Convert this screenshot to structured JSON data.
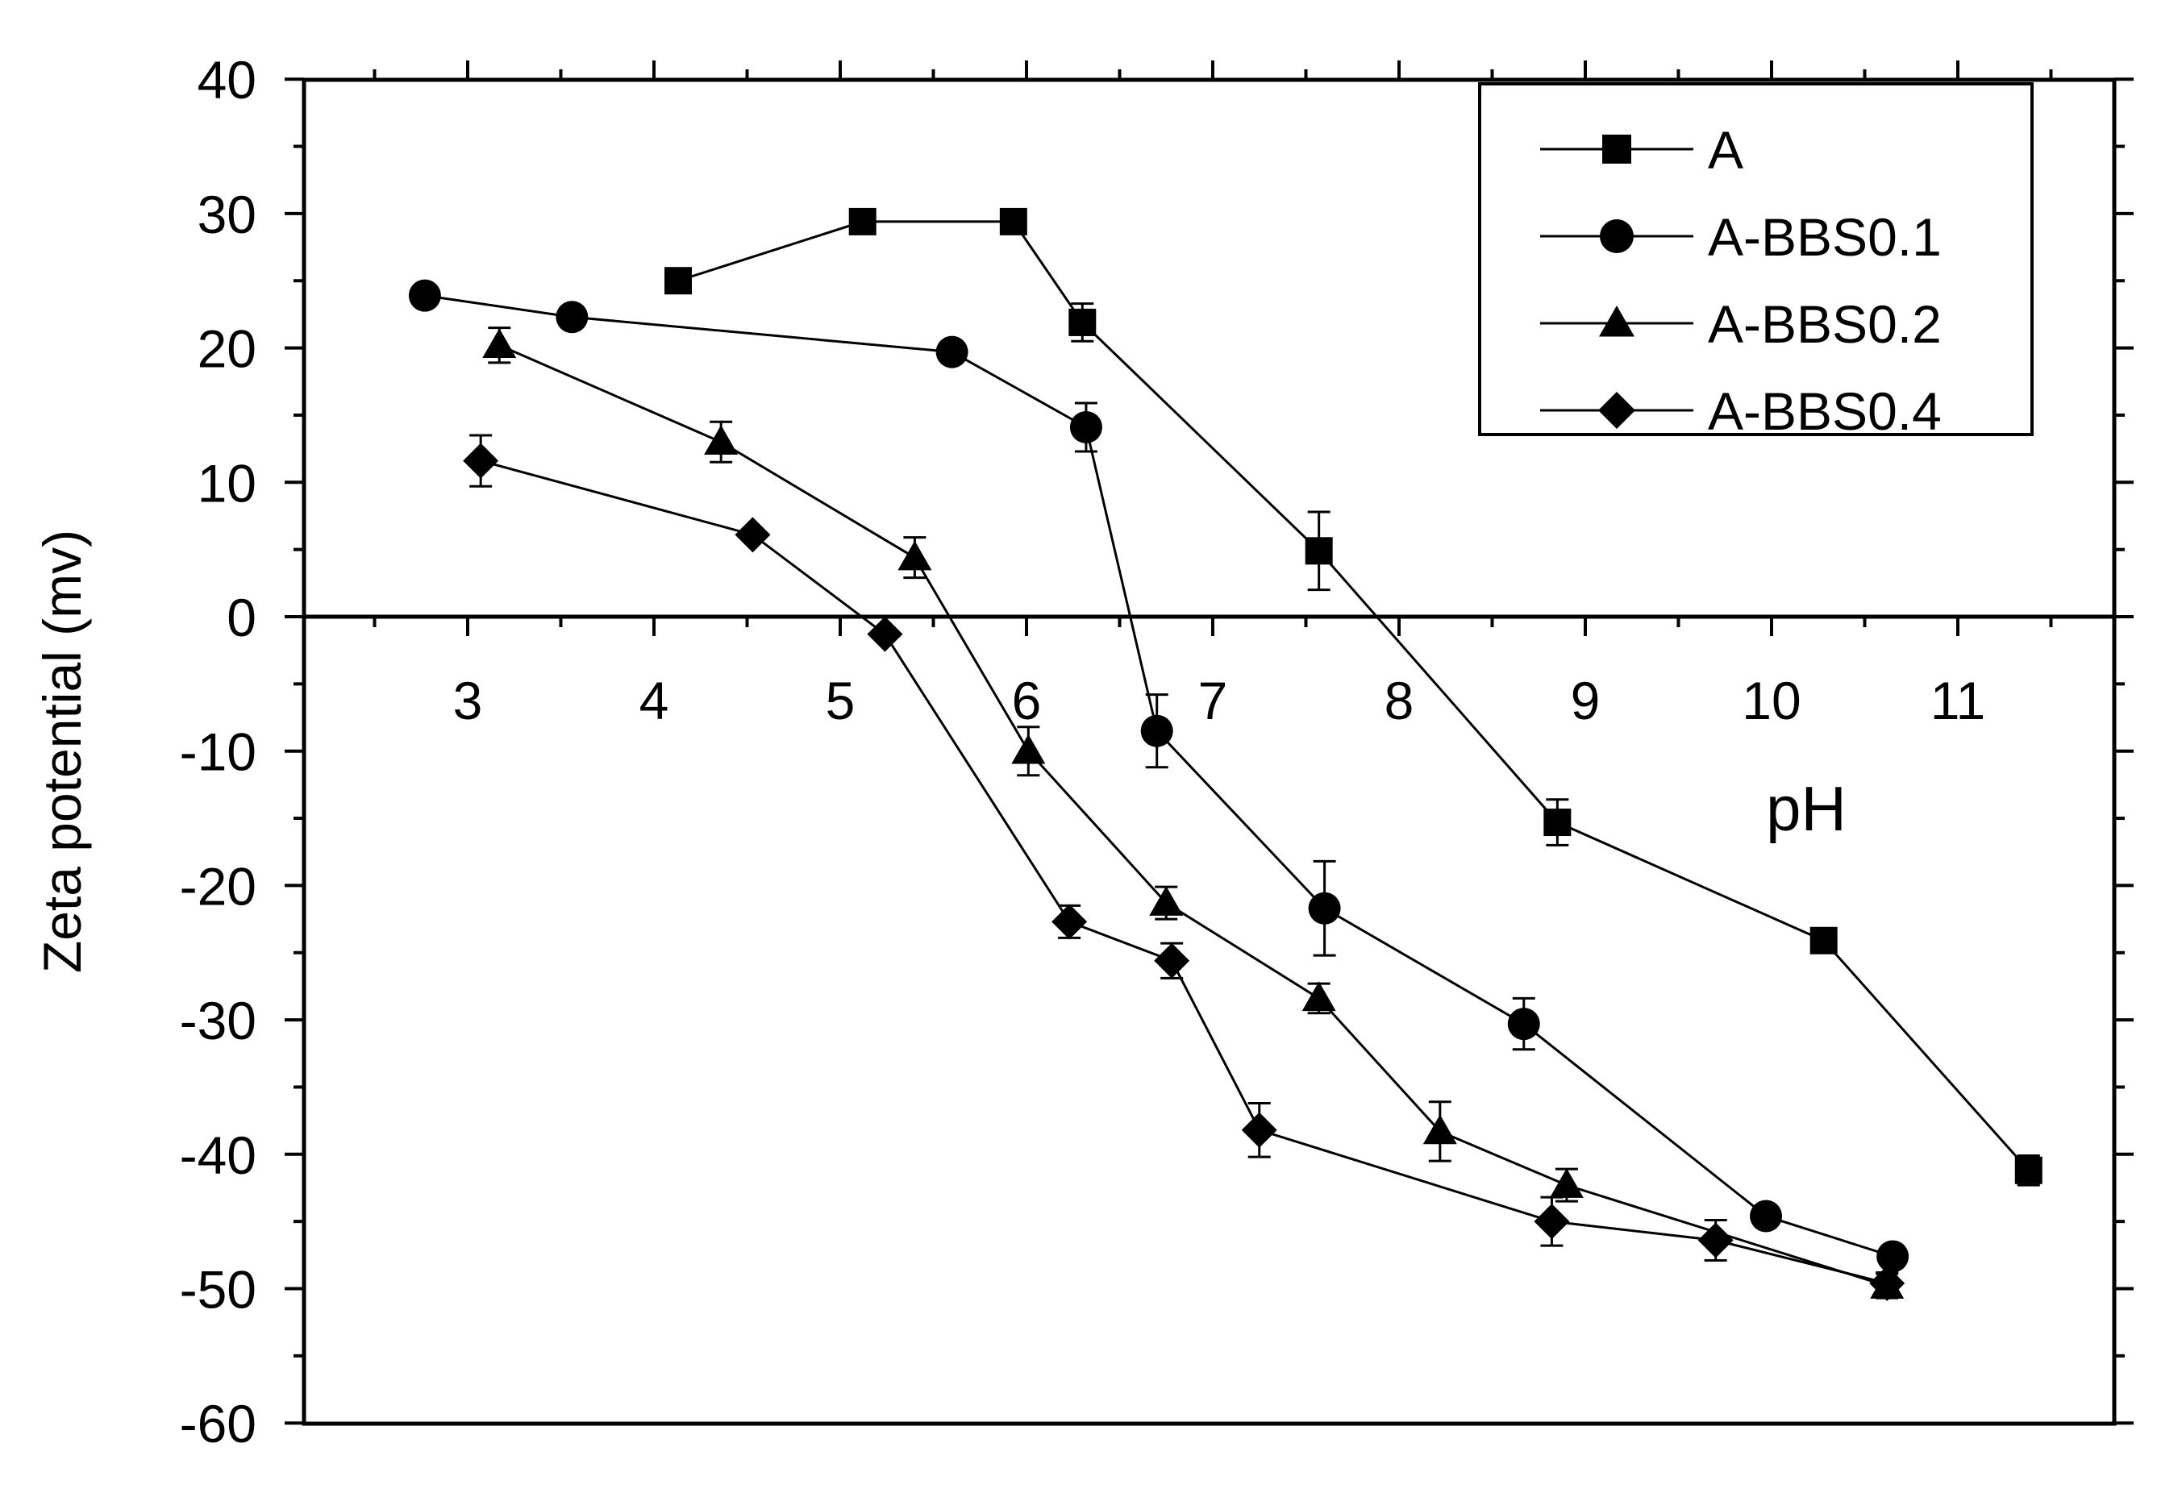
{
  "chart_data": {
    "type": "line",
    "title": "",
    "xlabel": "pH",
    "ylabel": "Zeta potential (mv)",
    "xlim": [
      2.2,
      11.8
    ],
    "ylim": [
      -60,
      40
    ],
    "x_ticks": [
      "3",
      "4",
      "5",
      "6",
      "7",
      "8",
      "9",
      "10",
      "11"
    ],
    "y_ticks": [
      "40",
      "30",
      "20",
      "10",
      "0",
      "-10",
      "-20",
      "-30",
      "-40",
      "-50",
      "-60"
    ],
    "grid": false,
    "legend_position": "top-right",
    "series": [
      {
        "name": "A",
        "marker": "square",
        "points": [
          {
            "x": 4.13,
            "y": 25.0,
            "err": 0
          },
          {
            "x": 5.12,
            "y": 29.4,
            "err": 0
          },
          {
            "x": 5.93,
            "y": 29.4,
            "err": 0
          },
          {
            "x": 6.3,
            "y": 21.9,
            "err": 1.4
          },
          {
            "x": 7.57,
            "y": 4.9,
            "err": 2.9
          },
          {
            "x": 8.85,
            "y": -15.3,
            "err": 1.7
          },
          {
            "x": 10.28,
            "y": -24.1,
            "err": 0.8
          },
          {
            "x": 11.38,
            "y": -41.2,
            "err": 1.1
          }
        ]
      },
      {
        "name": "A-BBS0.1",
        "marker": "circle",
        "points": [
          {
            "x": 2.77,
            "y": 23.9,
            "err": 0
          },
          {
            "x": 3.56,
            "y": 22.3,
            "err": 0
          },
          {
            "x": 5.6,
            "y": 19.7,
            "err": 0
          },
          {
            "x": 6.32,
            "y": 14.1,
            "err": 1.8
          },
          {
            "x": 6.7,
            "y": -8.5,
            "err": 2.7
          },
          {
            "x": 7.6,
            "y": -21.7,
            "err": 3.5
          },
          {
            "x": 8.67,
            "y": -30.3,
            "err": 1.9
          },
          {
            "x": 9.97,
            "y": -44.6,
            "err": 0.6
          },
          {
            "x": 10.65,
            "y": -47.6,
            "err": 0.8
          }
        ]
      },
      {
        "name": "A-BBS0.2",
        "marker": "triangle",
        "points": [
          {
            "x": 3.17,
            "y": 20.2,
            "err": 1.3
          },
          {
            "x": 4.36,
            "y": 13.0,
            "err": 1.5
          },
          {
            "x": 5.4,
            "y": 4.4,
            "err": 1.5
          },
          {
            "x": 6.01,
            "y": -10.0,
            "err": 1.8
          },
          {
            "x": 6.75,
            "y": -21.3,
            "err": 1.2
          },
          {
            "x": 7.57,
            "y": -28.4,
            "err": 1.1
          },
          {
            "x": 8.22,
            "y": -38.3,
            "err": 2.2
          },
          {
            "x": 8.9,
            "y": -42.3,
            "err": 1.2
          },
          {
            "x": 10.62,
            "y": -49.8,
            "err": 0.9
          }
        ]
      },
      {
        "name": "A-BBS0.4",
        "marker": "diamond",
        "points": [
          {
            "x": 3.07,
            "y": 11.6,
            "err": 1.9
          },
          {
            "x": 4.53,
            "y": 6.1,
            "err": 0
          },
          {
            "x": 5.24,
            "y": -1.3,
            "err": 0
          },
          {
            "x": 6.23,
            "y": -22.7,
            "err": 1.2
          },
          {
            "x": 6.78,
            "y": -25.6,
            "err": 1.3
          },
          {
            "x": 7.25,
            "y": -38.2,
            "err": 2.0
          },
          {
            "x": 8.82,
            "y": -45.0,
            "err": 1.8
          },
          {
            "x": 9.7,
            "y": -46.4,
            "err": 1.5
          },
          {
            "x": 10.62,
            "y": -49.6,
            "err": 0.8
          }
        ]
      }
    ]
  }
}
